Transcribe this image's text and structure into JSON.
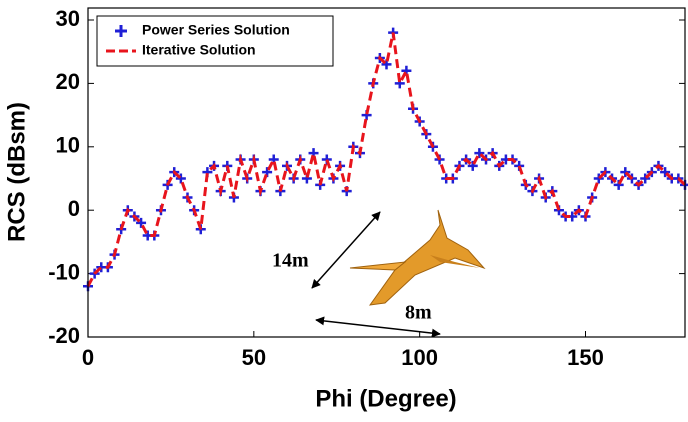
{
  "chart_data": {
    "type": "line",
    "xlabel": "Phi (Degree)",
    "ylabel": "RCS (dBsm)",
    "x": [
      0,
      2,
      4,
      6,
      8,
      10,
      12,
      14,
      16,
      18,
      20,
      22,
      24,
      26,
      28,
      30,
      32,
      34,
      36,
      38,
      40,
      42,
      44,
      46,
      48,
      50,
      52,
      54,
      56,
      58,
      60,
      62,
      64,
      66,
      68,
      70,
      72,
      74,
      76,
      78,
      80,
      82,
      84,
      86,
      88,
      90,
      92,
      94,
      96,
      98,
      100,
      102,
      104,
      106,
      108,
      110,
      112,
      114,
      116,
      118,
      120,
      122,
      124,
      126,
      128,
      130,
      132,
      134,
      136,
      138,
      140,
      142,
      144,
      146,
      148,
      150,
      152,
      154,
      156,
      158,
      160,
      162,
      164,
      166,
      168,
      170,
      172,
      174,
      176,
      178,
      180
    ],
    "series": [
      {
        "name": "Power Series Solution",
        "color": "#1f1fd6",
        "style": "marker",
        "values": [
          -12,
          -10,
          -9,
          -9,
          -7,
          -3,
          0,
          -1,
          -2,
          -4,
          -4,
          0,
          4,
          6,
          5,
          2,
          0,
          -3,
          6,
          7,
          3,
          7,
          2,
          8,
          5,
          8,
          3,
          6,
          8,
          3,
          7,
          5,
          8,
          5,
          9,
          4,
          8,
          5,
          7,
          3,
          10,
          9,
          15,
          20,
          24,
          23,
          28,
          20,
          22,
          16,
          14,
          12,
          10,
          8,
          5,
          5,
          7,
          8,
          7,
          9,
          8,
          9,
          7,
          8,
          8,
          7,
          4,
          3,
          5,
          2,
          3,
          0,
          -1,
          -1,
          0,
          -1,
          2,
          5,
          6,
          5,
          4,
          6,
          5,
          4,
          5,
          6,
          7,
          6,
          5,
          5,
          4
        ]
      },
      {
        "name": "Iterative Solution",
        "color": "#e8141c",
        "style": "dashed",
        "values": [
          -12,
          -10,
          -9,
          -9,
          -7,
          -3,
          0,
          -1,
          -2,
          -4,
          -4,
          0,
          4,
          6,
          5,
          2,
          0,
          -3,
          6,
          7,
          3,
          7,
          2,
          8,
          5,
          8,
          3,
          6,
          8,
          3,
          7,
          5,
          8,
          5,
          9,
          4,
          8,
          5,
          7,
          3,
          10,
          9,
          15,
          20,
          24,
          23,
          28,
          20,
          22,
          16,
          14,
          12,
          10,
          8,
          5,
          5,
          7,
          8,
          7,
          9,
          8,
          9,
          7,
          8,
          8,
          7,
          4,
          3,
          5,
          2,
          3,
          0,
          -1,
          -1,
          0,
          -1,
          2,
          5,
          6,
          5,
          4,
          6,
          5,
          4,
          5,
          6,
          7,
          6,
          5,
          5,
          4
        ]
      }
    ],
    "xlim": [
      0,
      180
    ],
    "xticks": [
      0,
      50,
      100,
      150
    ],
    "ylim": [
      -20,
      30
    ],
    "yticks": [
      -20,
      -10,
      0,
      10,
      20,
      30
    ],
    "legend": "upper left",
    "annotations": [
      "14m",
      "8m"
    ]
  }
}
